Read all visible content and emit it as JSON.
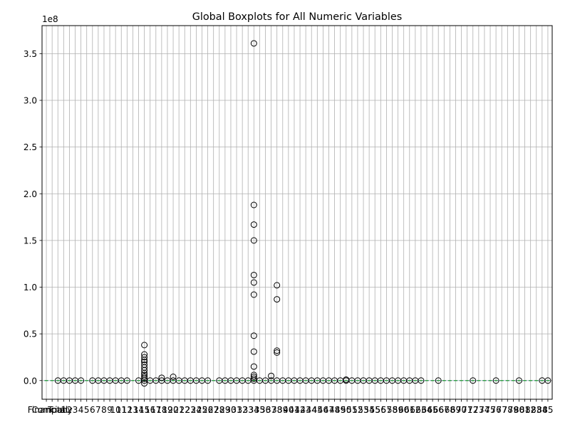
{
  "chart_data": {
    "type": "boxplot",
    "title": "Global Boxplots for All Numeric Variables",
    "y_offset_label": "1e8",
    "y_scale": 100000000,
    "ylim": [
      -0.2,
      3.8
    ],
    "y_ticks": [
      0.0,
      0.5,
      1.0,
      1.5,
      2.0,
      2.5,
      3.0,
      3.5
    ],
    "y_tick_labels": [
      "0.0",
      "0.5",
      "1.0",
      "1.5",
      "2.0",
      "2.5",
      "3.0",
      "3.5"
    ],
    "grid": true,
    "n_variables": 88,
    "x_tick_labels": [
      "Financial",
      "Company",
      "Total",
      "1",
      "2",
      "3",
      "4",
      "5",
      "6",
      "7",
      "8",
      "9",
      "10",
      "11",
      "12",
      "13",
      "14",
      "15",
      "16",
      "17",
      "18",
      "19",
      "20",
      "21",
      "22",
      "23",
      "24",
      "25",
      "26",
      "27",
      "28",
      "29",
      "30",
      "31",
      "32",
      "33",
      "34",
      "35",
      "36",
      "37",
      "38",
      "39",
      "40",
      "41",
      "42",
      "43",
      "44",
      "45",
      "46",
      "47",
      "48",
      "49",
      "50",
      "51",
      "52",
      "53",
      "54",
      "55",
      "56",
      "57",
      "58",
      "59",
      "60",
      "61",
      "62",
      "63",
      "64",
      "65",
      "66",
      "67",
      "68",
      "69",
      "70",
      "71",
      "72",
      "73",
      "74",
      "75",
      "76",
      "77",
      "78",
      "79",
      "80",
      "81",
      "82",
      "83",
      "84",
      "85"
    ],
    "box_color": "#1f77b4",
    "median_color": "#2ca02c",
    "flier_color": "#000000",
    "outliers": [
      {
        "var": 2,
        "values": [
          0.0
        ]
      },
      {
        "var": 3,
        "values": [
          0.0
        ]
      },
      {
        "var": 4,
        "values": [
          0.0
        ]
      },
      {
        "var": 5,
        "values": [
          0.0
        ]
      },
      {
        "var": 6,
        "values": [
          0.0
        ]
      },
      {
        "var": 8,
        "values": [
          0.0
        ]
      },
      {
        "var": 9,
        "values": [
          0.0
        ]
      },
      {
        "var": 10,
        "values": [
          0.0
        ]
      },
      {
        "var": 11,
        "values": [
          0.0
        ]
      },
      {
        "var": 12,
        "values": [
          0.0
        ]
      },
      {
        "var": 13,
        "values": [
          0.0
        ]
      },
      {
        "var": 14,
        "values": [
          0.0
        ]
      },
      {
        "var": 16,
        "values": [
          0.0
        ]
      },
      {
        "var": 17,
        "values": [
          0.38,
          0.28,
          0.25,
          0.22,
          0.2,
          0.17,
          0.14,
          0.11,
          0.08,
          0.06,
          0.04,
          0.02,
          0.0,
          -0.03
        ]
      },
      {
        "var": 18,
        "values": [
          0.0
        ]
      },
      {
        "var": 19,
        "values": [
          0.0
        ]
      },
      {
        "var": 20,
        "values": [
          0.03,
          0.0
        ]
      },
      {
        "var": 21,
        "values": [
          0.0
        ]
      },
      {
        "var": 22,
        "values": [
          0.04,
          0.0
        ]
      },
      {
        "var": 23,
        "values": [
          0.0
        ]
      },
      {
        "var": 24,
        "values": [
          0.0
        ]
      },
      {
        "var": 25,
        "values": [
          0.0
        ]
      },
      {
        "var": 26,
        "values": [
          0.0
        ]
      },
      {
        "var": 27,
        "values": [
          0.0
        ]
      },
      {
        "var": 28,
        "values": [
          0.0
        ]
      },
      {
        "var": 30,
        "values": [
          0.0
        ]
      },
      {
        "var": 31,
        "values": [
          0.0
        ]
      },
      {
        "var": 32,
        "values": [
          0.0
        ]
      },
      {
        "var": 33,
        "values": [
          0.0
        ]
      },
      {
        "var": 34,
        "values": [
          0.0
        ]
      },
      {
        "var": 35,
        "values": [
          0.0
        ]
      },
      {
        "var": 36,
        "values": [
          3.61,
          1.88,
          1.67,
          1.5,
          1.13,
          1.05,
          0.92,
          0.48,
          0.31,
          0.15,
          0.06,
          0.04,
          0.02,
          0.0
        ]
      },
      {
        "var": 37,
        "values": [
          0.0
        ]
      },
      {
        "var": 38,
        "values": [
          0.0
        ]
      },
      {
        "var": 39,
        "values": [
          0.05,
          0.0
        ]
      },
      {
        "var": 40,
        "values": [
          1.02,
          0.87,
          0.32,
          0.3,
          0.0
        ]
      },
      {
        "var": 41,
        "values": [
          0.0
        ]
      },
      {
        "var": 42,
        "values": [
          0.0
        ]
      },
      {
        "var": 43,
        "values": [
          0.0
        ]
      },
      {
        "var": 44,
        "values": [
          0.0
        ]
      },
      {
        "var": 45,
        "values": [
          0.0
        ]
      },
      {
        "var": 46,
        "values": [
          0.0
        ]
      },
      {
        "var": 47,
        "values": [
          0.0
        ]
      },
      {
        "var": 48,
        "values": [
          0.0
        ]
      },
      {
        "var": 49,
        "values": [
          0.0
        ]
      },
      {
        "var": 50,
        "values": [
          0.0
        ]
      },
      {
        "var": 51,
        "values": [
          0.0
        ]
      },
      {
        "var": 52,
        "values": [
          0.01,
          0.0
        ]
      },
      {
        "var": 53,
        "values": [
          0.0
        ]
      },
      {
        "var": 54,
        "values": [
          0.0
        ]
      },
      {
        "var": 55,
        "values": [
          0.0
        ]
      },
      {
        "var": 56,
        "values": [
          0.0
        ]
      },
      {
        "var": 57,
        "values": [
          0.0
        ]
      },
      {
        "var": 58,
        "values": [
          0.0
        ]
      },
      {
        "var": 59,
        "values": [
          0.0
        ]
      },
      {
        "var": 60,
        "values": [
          0.0
        ]
      },
      {
        "var": 61,
        "values": [
          0.0
        ]
      },
      {
        "var": 62,
        "values": [
          0.0
        ]
      },
      {
        "var": 63,
        "values": [
          0.0
        ]
      },
      {
        "var": 64,
        "values": [
          0.0
        ]
      },
      {
        "var": 65,
        "values": [
          0.0
        ]
      },
      {
        "var": 68,
        "values": [
          0.0
        ]
      },
      {
        "var": 74,
        "values": [
          0.0
        ]
      },
      {
        "var": 78,
        "values": [
          0.0
        ]
      },
      {
        "var": 82,
        "values": [
          0.0
        ]
      },
      {
        "var": 86,
        "values": [
          0.0
        ]
      },
      {
        "var": 87,
        "values": [
          0.0
        ]
      }
    ]
  }
}
